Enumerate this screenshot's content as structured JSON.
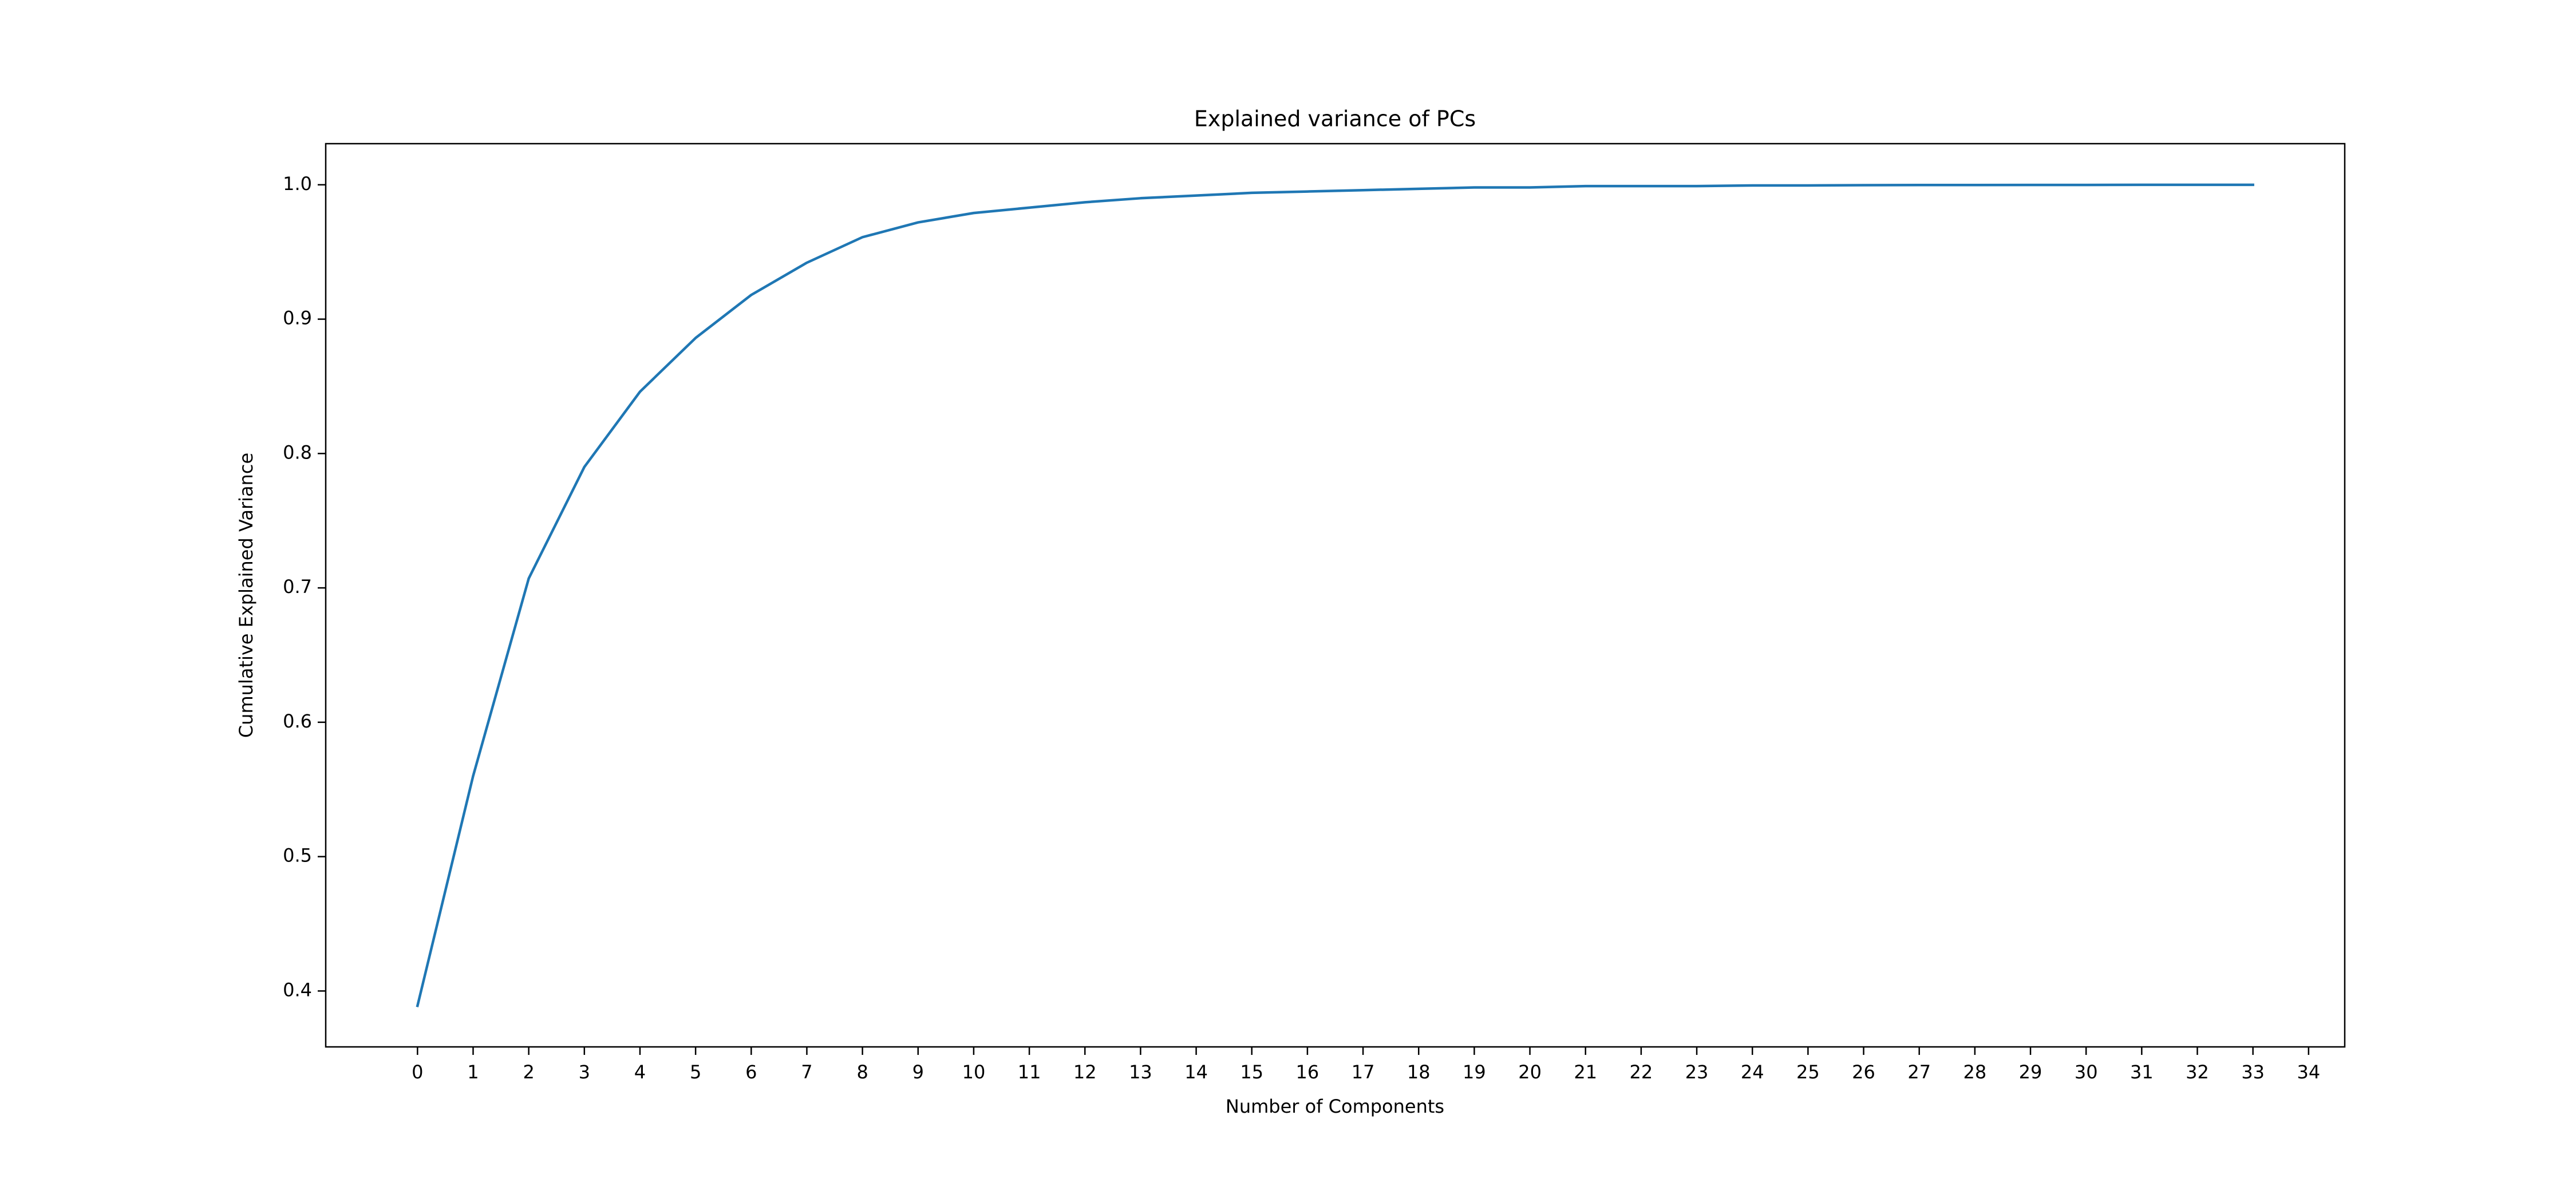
{
  "chart_data": {
    "type": "line",
    "title": "Explained variance of PCs",
    "x_label": "Number of Components",
    "y_label": "Cumulative Explained Variance",
    "x": [
      0,
      1,
      2,
      3,
      4,
      5,
      6,
      7,
      8,
      9,
      10,
      11,
      12,
      13,
      14,
      15,
      16,
      17,
      18,
      19,
      20,
      21,
      22,
      23,
      24,
      25,
      26,
      27,
      28,
      29,
      30,
      31,
      32,
      33
    ],
    "series": [
      {
        "color": "#1f77b4",
        "values": [
          0.389,
          0.56,
          0.707,
          0.79,
          0.846,
          0.886,
          0.918,
          0.942,
          0.961,
          0.972,
          0.979,
          0.983,
          0.987,
          0.99,
          0.992,
          0.994,
          0.995,
          0.996,
          0.997,
          0.998,
          0.998,
          0.999,
          0.999,
          0.999,
          0.9995,
          0.9995,
          0.9997,
          0.9998,
          0.9998,
          0.9999,
          0.9999,
          1,
          1,
          1
        ]
      }
    ],
    "xlim": [
      -1.65,
      34.65
    ],
    "ylim": [
      0.3584,
      1.0306
    ],
    "xticks": [
      0,
      1,
      2,
      3,
      4,
      5,
      6,
      7,
      8,
      9,
      10,
      11,
      12,
      13,
      14,
      15,
      16,
      17,
      18,
      19,
      20,
      21,
      22,
      23,
      24,
      25,
      26,
      27,
      28,
      29,
      30,
      31,
      32,
      33,
      34
    ],
    "yticks": [
      0.4,
      0.5,
      0.6,
      0.7,
      0.8,
      0.9,
      {
        "value": 1,
        "label": "1.0"
      }
    ]
  }
}
